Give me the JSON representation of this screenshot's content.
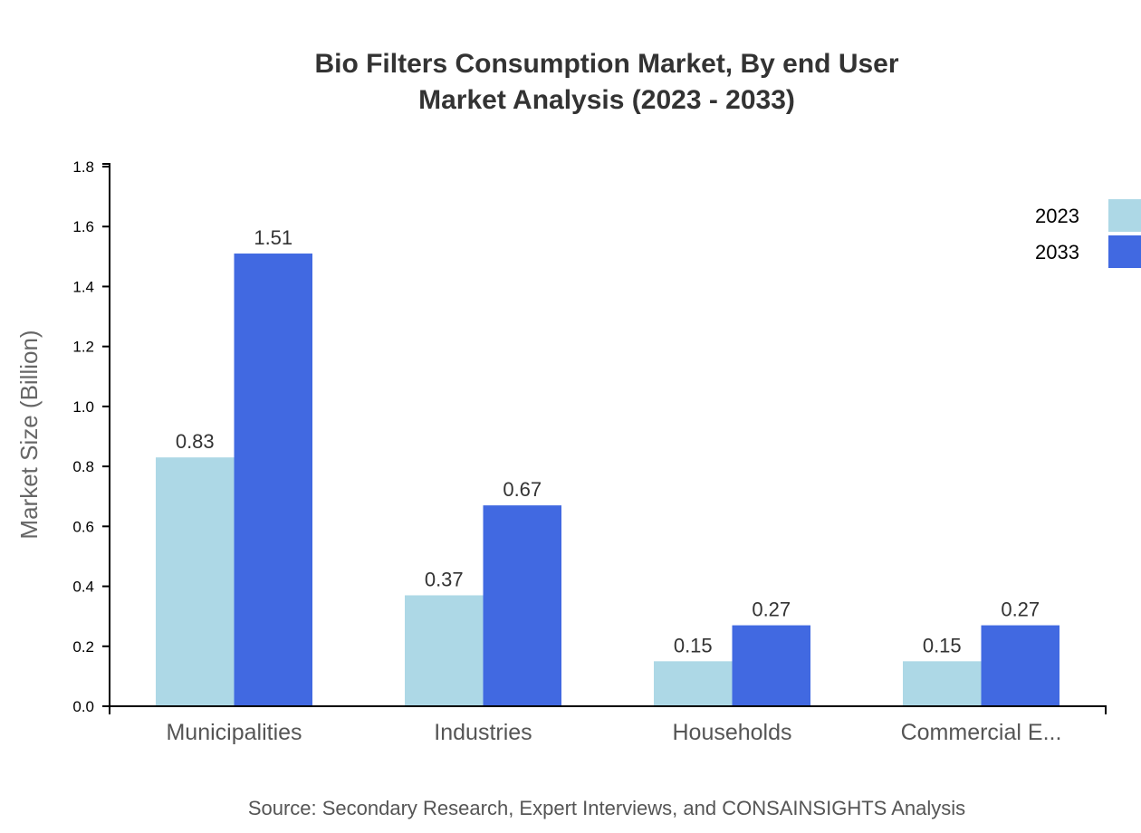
{
  "chart_data": {
    "type": "bar",
    "title": "Bio Filters Consumption Market, By end User",
    "subtitle": "Market Analysis (2023 - 2033)",
    "xlabel": "",
    "ylabel": "Market Size (Billion)",
    "categories": [
      "Municipalities",
      "Industries",
      "Households",
      "Commercial E..."
    ],
    "series": [
      {
        "name": "2023",
        "values": [
          0.83,
          0.37,
          0.15,
          0.15
        ],
        "color": "#add8e6"
      },
      {
        "name": "2033",
        "values": [
          1.51,
          0.67,
          0.27,
          0.27
        ],
        "color": "#4169e1"
      }
    ],
    "data_labels": [
      [
        "0.83",
        "0.37",
        "0.15",
        "0.15"
      ],
      [
        "1.51",
        "0.67",
        "0.27",
        "0.27"
      ]
    ],
    "ylim": [
      0,
      1.8
    ],
    "yticks": [
      "0.0",
      "0.2",
      "0.4",
      "0.6",
      "0.8",
      "1.0",
      "1.2",
      "1.4",
      "1.6",
      "1.8"
    ],
    "grid": false,
    "legend_position": "top-right",
    "source": "Source: Secondary Research, Expert Interviews, and CONSAINSIGHTS Analysis"
  }
}
